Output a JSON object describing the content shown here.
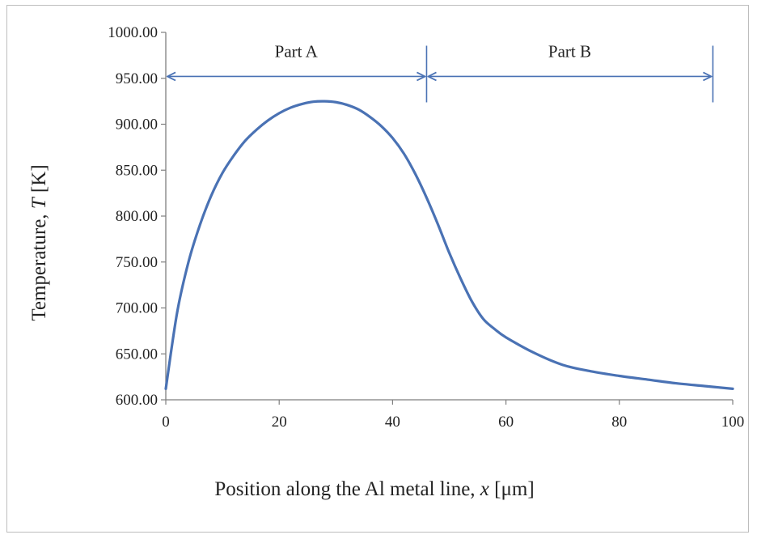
{
  "chart_data": {
    "type": "line",
    "title": "",
    "xlabel": {
      "prefix": "Position along the Al metal line, ",
      "var": "x",
      "unit": " [μm]"
    },
    "ylabel": {
      "prefix": "Temperature, ",
      "var": "T",
      "unit": " [K]"
    },
    "xlim": [
      0,
      100
    ],
    "ylim": [
      600,
      1000
    ],
    "xticks": [
      0,
      20,
      40,
      60,
      80,
      100
    ],
    "xtick_labels": [
      "0",
      "20",
      "40",
      "60",
      "80",
      "100"
    ],
    "yticks": [
      600,
      650,
      700,
      750,
      800,
      850,
      900,
      950,
      1000
    ],
    "ytick_labels": [
      "600.00",
      "650.00",
      "700.00",
      "750.00",
      "800.00",
      "850.00",
      "900.00",
      "950.00",
      "1000.00"
    ],
    "grid": false,
    "line_color": "#4a72b4",
    "annotation_color": "#4a72b4",
    "series": [
      {
        "x": [
          0,
          2,
          4,
          6,
          8,
          10,
          12,
          14,
          16,
          18,
          20,
          22,
          24,
          26,
          28,
          30,
          32,
          34,
          36,
          38,
          40,
          42,
          44,
          46,
          48,
          50,
          52,
          54,
          56,
          58,
          60,
          65,
          70,
          75,
          80,
          85,
          90,
          95,
          100
        ],
        "y": [
          612,
          695,
          750,
          790,
          822,
          847,
          866,
          882,
          894,
          904,
          912,
          918,
          922,
          924.5,
          925,
          924,
          921,
          916,
          908,
          898,
          885,
          868,
          846,
          820,
          791,
          760,
          732,
          707,
          688,
          677,
          668,
          651,
          638,
          631,
          626,
          622,
          618,
          615,
          612
        ]
      }
    ],
    "regions": [
      {
        "label": "Part A",
        "x_start": 0,
        "x_end": 46,
        "y": 952
      },
      {
        "label": "Part B",
        "x_start": 46,
        "x_end": 96.5,
        "y": 952
      }
    ]
  }
}
